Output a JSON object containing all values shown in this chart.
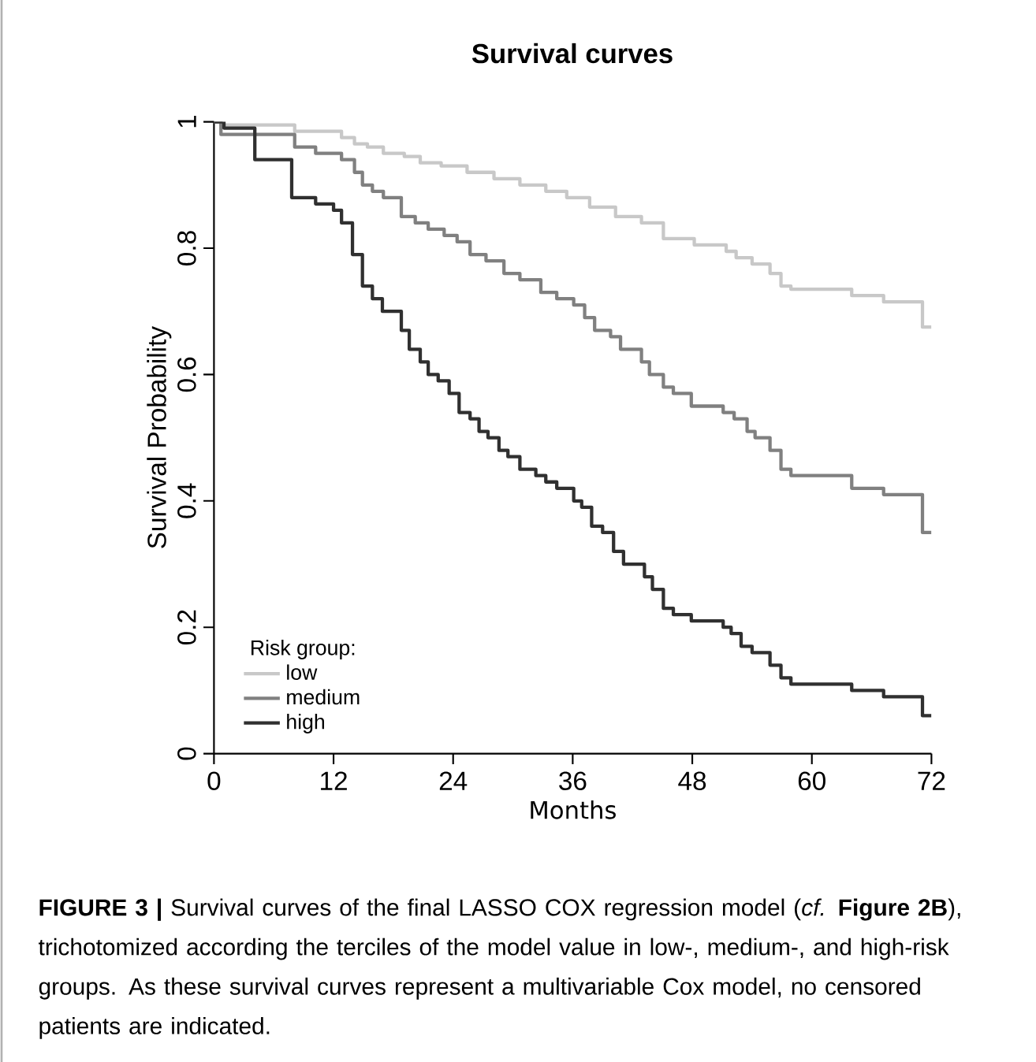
{
  "chart_data": {
    "type": "step",
    "title": "Survival curves",
    "xlabel": "Months",
    "ylabel": "Survival Probability",
    "legend_title": "Risk group:",
    "legend": "bottom left",
    "xlim": [
      0,
      72
    ],
    "xticks": [
      0,
      12,
      24,
      36,
      48,
      60,
      72
    ],
    "ylim": [
      0,
      1
    ],
    "yticks": [
      0,
      0.2,
      0.4,
      0.6,
      0.8,
      1
    ],
    "series": [
      {
        "name": "low",
        "color": "#c8c8c8",
        "x": [
          0,
          0.7,
          8.1,
          12.8,
          14.1,
          15.4,
          17,
          19.1,
          20.7,
          22.8,
          25.4,
          28.1,
          30.7,
          33.3,
          35.4,
          37.7,
          40.3,
          42.9,
          45.1,
          48.2,
          51.4,
          52.4,
          54,
          55.8,
          56.9,
          57.9,
          64,
          67.2,
          71.1,
          72
        ],
        "values": [
          1,
          0.995,
          0.985,
          0.975,
          0.965,
          0.96,
          0.95,
          0.945,
          0.935,
          0.93,
          0.92,
          0.91,
          0.9,
          0.89,
          0.88,
          0.865,
          0.85,
          0.84,
          0.815,
          0.805,
          0.795,
          0.785,
          0.775,
          0.76,
          0.74,
          0.735,
          0.725,
          0.715,
          0.675,
          0.675
        ]
      },
      {
        "name": "medium",
        "color": "#808080",
        "x": [
          0,
          0.7,
          8.1,
          10.2,
          12.8,
          14.1,
          14.9,
          15.9,
          17,
          18.8,
          20.2,
          21.5,
          23.1,
          24.4,
          25.7,
          27.3,
          29.1,
          30.7,
          32.8,
          34.4,
          36.1,
          37.2,
          38.2,
          39.8,
          40.8,
          42.9,
          43.7,
          45.1,
          46.1,
          47.9,
          51.1,
          52.2,
          53.5,
          54.3,
          55.8,
          56.9,
          57.9,
          64,
          67.2,
          71.1,
          72
        ],
        "values": [
          1,
          0.98,
          0.96,
          0.95,
          0.94,
          0.92,
          0.9,
          0.89,
          0.88,
          0.85,
          0.84,
          0.83,
          0.82,
          0.81,
          0.79,
          0.78,
          0.76,
          0.75,
          0.73,
          0.72,
          0.71,
          0.69,
          0.67,
          0.66,
          0.64,
          0.62,
          0.6,
          0.58,
          0.57,
          0.55,
          0.54,
          0.53,
          0.51,
          0.5,
          0.48,
          0.45,
          0.44,
          0.42,
          0.41,
          0.35,
          0.35
        ]
      },
      {
        "name": "high",
        "color": "#303030",
        "x": [
          0,
          1,
          4.1,
          7.8,
          10.2,
          12,
          12.8,
          13.9,
          14.9,
          15.9,
          16.9,
          18.8,
          19.6,
          20.7,
          21.5,
          22.5,
          23.6,
          24.6,
          25.7,
          26.6,
          27.5,
          28.6,
          29.5,
          30.7,
          32.3,
          33.3,
          34.4,
          36.1,
          36.9,
          37.9,
          39,
          40.1,
          41.1,
          43.2,
          44,
          45.1,
          46.1,
          47.9,
          51.1,
          51.9,
          52.9,
          54,
          55.8,
          56.9,
          57.9,
          64,
          67.2,
          71.1,
          72
        ],
        "values": [
          1,
          0.99,
          0.94,
          0.88,
          0.87,
          0.86,
          0.84,
          0.79,
          0.74,
          0.72,
          0.7,
          0.67,
          0.64,
          0.62,
          0.6,
          0.59,
          0.57,
          0.54,
          0.53,
          0.51,
          0.5,
          0.48,
          0.47,
          0.45,
          0.44,
          0.43,
          0.42,
          0.4,
          0.39,
          0.36,
          0.35,
          0.32,
          0.3,
          0.28,
          0.26,
          0.23,
          0.22,
          0.21,
          0.2,
          0.19,
          0.17,
          0.16,
          0.14,
          0.12,
          0.11,
          0.1,
          0.09,
          0.06,
          0.06
        ]
      }
    ],
    "annotations": [
      "**FIGURE 3 |** Survival curves of the final LASSO COX regression model (*cf.* **Figure 2B**), trichotomized according the terciles of the model value in low-, medium-, and high-risk groups. As these survival curves represent a multivariable Cox model, no censored patients are indicated."
    ]
  }
}
